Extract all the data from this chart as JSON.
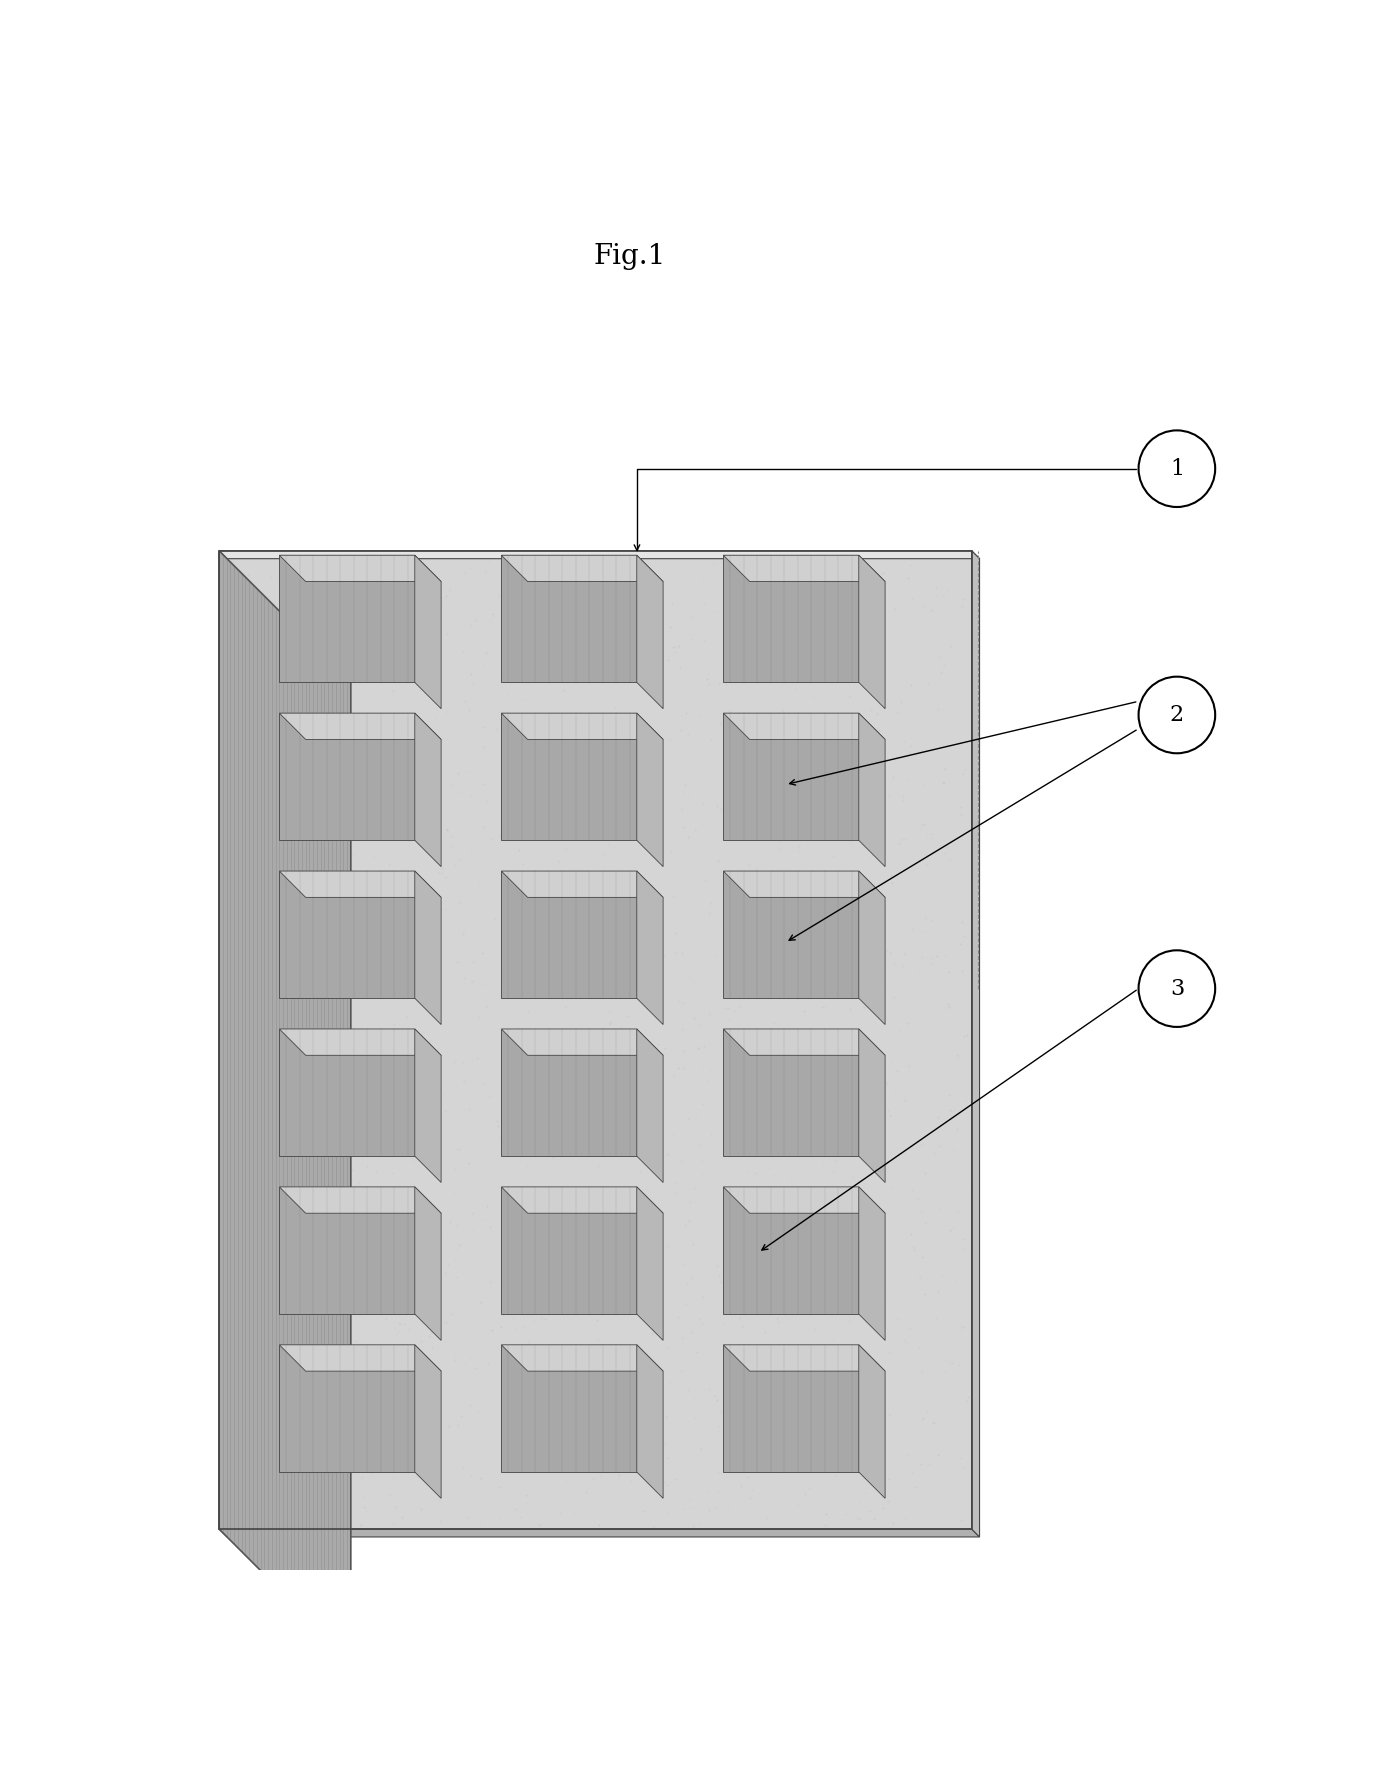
{
  "title": "Fig.1",
  "title_fontsize": 20,
  "fig_width": 13.96,
  "fig_height": 17.72,
  "background_color": "#ffffff",
  "grid_rows": 6,
  "grid_cols": 3,
  "plate_face_color": "#d5d5d5",
  "plate_top_color": "#e8e8e8",
  "plate_right_color": "#c0c0c0",
  "left_wall_color": "#aaaaaa",
  "left_wall_edge_color": "#555555",
  "cube_front_color": "#a8a8a8",
  "cube_top_color": "#d0d0d0",
  "cube_right_color": "#b8b8b8",
  "cube_edge_color": "#444444",
  "plate_edge_color": "#444444"
}
